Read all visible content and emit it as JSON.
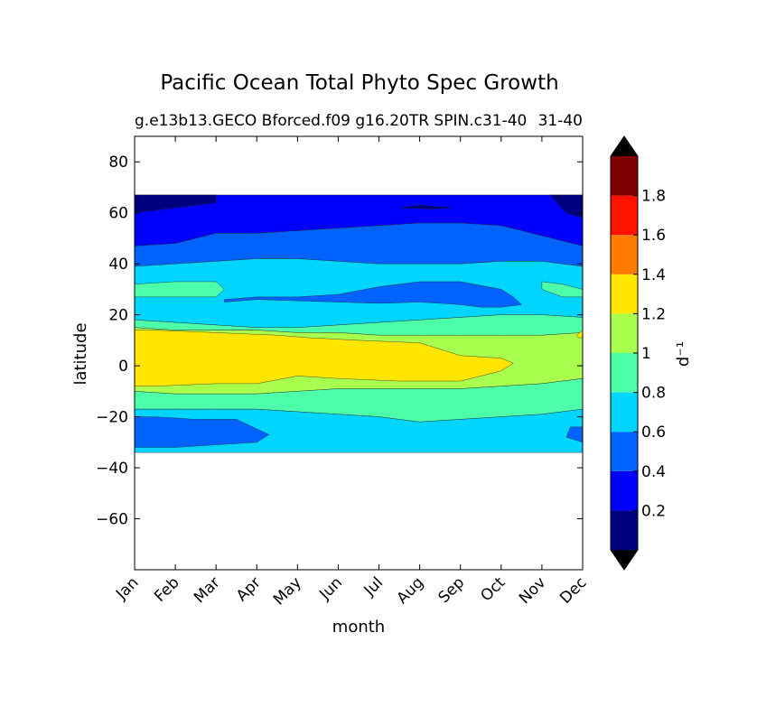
{
  "title": "Pacific Ocean Total Phyto Spec Growth",
  "subtitle_left": "g.e13b13.GECO Bforced.f09 g16.20TR SPIN.c31-40",
  "subtitle_right": "31-40",
  "chart_data": {
    "type": "heatmap",
    "subtype": "filled-contour",
    "xlabel": "month",
    "ylabel": "latitude",
    "x_categories": [
      "Jan",
      "Feb",
      "Mar",
      "Apr",
      "May",
      "Jun",
      "Jul",
      "Aug",
      "Sep",
      "Oct",
      "Nov",
      "Dec"
    ],
    "y_ticks": [
      80,
      60,
      40,
      20,
      0,
      -20,
      -40,
      -60
    ],
    "y_tick_labels": [
      "80",
      "60",
      "40",
      "20",
      "0",
      "−20",
      "−40",
      "−60"
    ],
    "ylim": [
      -80,
      90
    ],
    "data_lat_range": [
      -34,
      67
    ],
    "colorbar": {
      "label": "d⁻¹",
      "extend": "both",
      "levels": [
        0,
        0.2,
        0.4,
        0.6,
        0.8,
        1.0,
        1.2,
        1.4,
        1.6,
        1.8,
        2.0
      ],
      "tick_values": [
        0.2,
        0.4,
        0.6,
        0.8,
        1,
        1.2,
        1.4,
        1.6,
        1.8
      ],
      "tick_labels": [
        "0.2",
        "0.4",
        "0.6",
        "0.8",
        "1",
        "1.2",
        "1.4",
        "1.6",
        "1.8"
      ],
      "colors": [
        "#00007f",
        "#0000ff",
        "#0063ff",
        "#00d5ff",
        "#4effa9",
        "#a9ff4e",
        "#ffe500",
        "#ff7b00",
        "#ff1200",
        "#7f0000"
      ],
      "under_color": "#000000",
      "over_color": "#000000"
    },
    "bands": [
      {
        "value_range": "0.2-0.4",
        "north": [
          67,
          67,
          67,
          67,
          67,
          67,
          67,
          67,
          67,
          67,
          67,
          67
        ],
        "south": [
          47,
          48,
          52,
          52,
          53,
          54,
          55,
          56,
          56,
          55,
          51,
          47
        ]
      },
      {
        "value_range": "0.4-0.6",
        "north": [
          47,
          48,
          52,
          52,
          53,
          54,
          55,
          56,
          56,
          55,
          51,
          47
        ],
        "south": [
          39,
          40,
          41,
          42,
          42,
          41,
          40,
          40,
          40,
          41,
          41,
          39
        ]
      },
      {
        "value_range": "0.6-0.8",
        "north": [
          39,
          40,
          41,
          42,
          42,
          41,
          40,
          40,
          40,
          41,
          41,
          39
        ],
        "south": [
          18,
          17,
          16,
          15,
          15,
          16,
          17,
          18,
          19,
          20,
          20,
          19
        ]
      },
      {
        "value_range": "0.8-1.0",
        "north": [
          18,
          17,
          16,
          15,
          15,
          16,
          17,
          18,
          19,
          20,
          20,
          19
        ],
        "south": [
          15,
          14,
          14,
          14,
          13,
          13,
          12,
          12,
          12,
          12,
          12,
          13
        ]
      },
      {
        "value_range": "1.0-1.2",
        "north": [
          15,
          14,
          14,
          14,
          13,
          13,
          12,
          12,
          12,
          12,
          12,
          13
        ],
        "south": [
          -10,
          -11,
          -11,
          -11,
          -10,
          -9,
          -9,
          -9,
          -9,
          -8,
          -7,
          -5
        ]
      },
      {
        "value_range": "0.8-1.0",
        "north": [
          -10,
          -11,
          -11,
          -11,
          -10,
          -9,
          -9,
          -9,
          -9,
          -8,
          -7,
          -5
        ],
        "south": [
          -17,
          -17,
          -17,
          -17,
          -18,
          -19,
          -20,
          -22,
          -21,
          -20,
          -19,
          -17
        ]
      },
      {
        "value_range": "0.6-0.8",
        "north": [
          -17,
          -17,
          -17,
          -17,
          -18,
          -19,
          -20,
          -22,
          -21,
          -20,
          -19,
          -17
        ],
        "south": [
          -34,
          -34,
          -34,
          -34,
          -34,
          -34,
          -34,
          -34,
          -34,
          -34,
          -34,
          -34
        ]
      }
    ],
    "patches": [
      {
        "value_range": "1.2-1.4",
        "x": [
          0,
          0.5,
          2,
          3.5,
          4.3,
          5.5,
          7,
          8,
          9,
          9.3,
          9,
          8,
          6.5,
          5,
          4,
          3,
          2,
          0.5,
          0
        ],
        "y": [
          14,
          14,
          13,
          12,
          11,
          10,
          9,
          4,
          3,
          1,
          -2,
          -6,
          -6,
          -5,
          -4,
          -7,
          -7,
          -8,
          -8
        ]
      },
      {
        "value_range": "1.2-1.4",
        "x": [
          10.85,
          11,
          11,
          10.9
        ],
        "y": [
          12,
          14,
          11,
          11
        ]
      },
      {
        "value_range": "0.4-0.6",
        "x": [
          2.2,
          3,
          4,
          5,
          6,
          7,
          8,
          8.5,
          9,
          9.5,
          9.3,
          9,
          8,
          7,
          6,
          5,
          4,
          3,
          2.2
        ],
        "y": [
          25,
          26,
          25.5,
          25,
          24.5,
          25,
          24,
          23,
          23,
          24,
          27,
          30,
          33,
          33,
          31,
          28,
          27,
          27,
          26
        ]
      },
      {
        "value_range": "0.8-1.0",
        "x": [
          0,
          1,
          2,
          2.2,
          2,
          1,
          0
        ],
        "y": [
          32,
          33,
          33,
          30,
          27,
          27,
          27
        ]
      },
      {
        "value_range": "0.8-1.0",
        "x": [
          10,
          10.5,
          11,
          11,
          10.5,
          10
        ],
        "y": [
          33,
          32,
          30,
          27,
          27,
          30
        ]
      },
      {
        "value_range": "0.4-0.6",
        "x": [
          0,
          0.5,
          1.5,
          2.5,
          3.3,
          3,
          2,
          1,
          0
        ],
        "y": [
          -20,
          -20,
          -21,
          -21,
          -27,
          -30,
          -31,
          -32,
          -32
        ]
      },
      {
        "value_range": "0.4-0.6",
        "x": [
          10.7,
          11,
          11,
          10.6
        ],
        "y": [
          -24,
          -24,
          -30,
          -28
        ]
      },
      {
        "value_range": "0-0.2",
        "x": [
          0,
          1,
          2,
          2,
          1.5,
          1,
          0
        ],
        "y": [
          67,
          67,
          67,
          64,
          63,
          62,
          60
        ]
      },
      {
        "value_range": "0-0.2",
        "x": [
          10.2,
          11,
          11,
          10.6
        ],
        "y": [
          67,
          67,
          58,
          60
        ]
      },
      {
        "value_range": "0-0.2",
        "x": [
          6.5,
          7,
          7.8,
          7.3
        ],
        "y": [
          62,
          63,
          62,
          61.5
        ]
      }
    ]
  }
}
